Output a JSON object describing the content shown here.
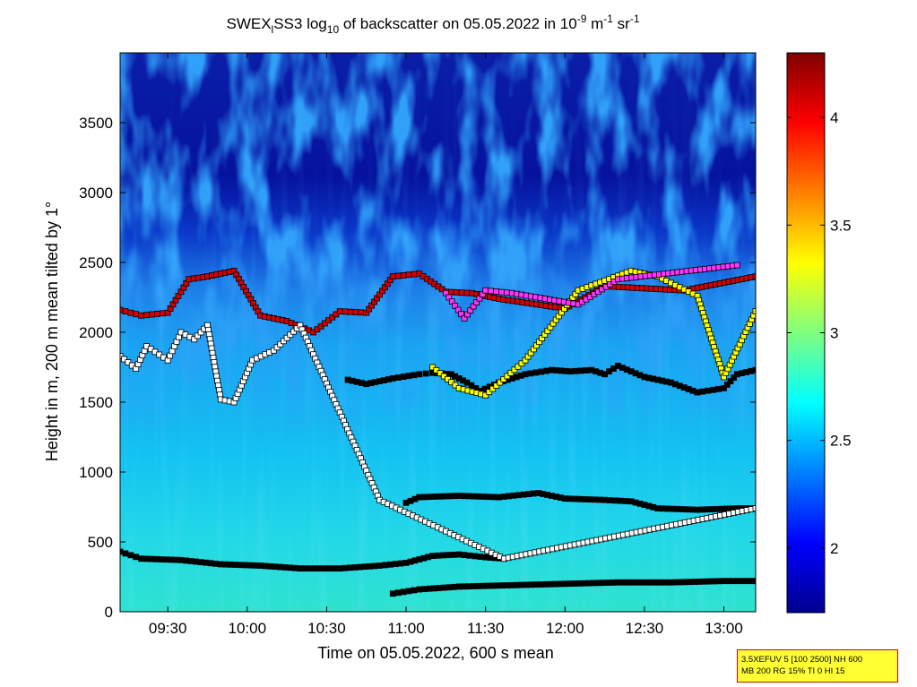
{
  "chart_data": {
    "type": "heatmap",
    "title": {
      "prefix": "SWEX",
      "sub1": "l",
      "mid1": "SS3 log",
      "sub2": "10",
      "mid2": " of backscatter on 05.05.2022 in 10",
      "sup1": "-9",
      "mid3": " m",
      "sup2": "-1",
      "mid4": " sr",
      "sup3": "-1"
    },
    "xlabel": "Time on 05.05.2022, 600 s mean",
    "ylabel": "Height in m, 200 m mean tilted by 1°",
    "xlim": [
      "09:12",
      "13:12"
    ],
    "ylim": [
      0,
      4000
    ],
    "x_ticks": [
      "09:30",
      "10:00",
      "10:30",
      "11:00",
      "11:30",
      "12:00",
      "12:30",
      "13:00"
    ],
    "y_ticks": [
      "0",
      "500",
      "1000",
      "1500",
      "2000",
      "2500",
      "3000",
      "3500"
    ],
    "colorbar": {
      "range": [
        1.7,
        4.3
      ],
      "ticks": [
        "2",
        "2.5",
        "3",
        "3.5",
        "4"
      ],
      "colormap": "jet"
    },
    "layers": [
      {
        "marker": "black",
        "points": [
          [
            "09:12",
            430
          ],
          [
            "09:20",
            380
          ],
          [
            "09:35",
            370
          ],
          [
            "09:50",
            340
          ],
          [
            "10:05",
            330
          ],
          [
            "10:20",
            310
          ],
          [
            "10:35",
            310
          ],
          [
            "10:50",
            330
          ],
          [
            "11:00",
            350
          ],
          [
            "11:10",
            400
          ],
          [
            "11:20",
            410
          ],
          [
            "11:30",
            390
          ],
          [
            "11:37",
            380
          ]
        ]
      },
      {
        "marker": "black",
        "points": [
          [
            "10:55",
            130
          ],
          [
            "11:05",
            160
          ],
          [
            "11:20",
            180
          ],
          [
            "11:40",
            190
          ],
          [
            "12:00",
            200
          ],
          [
            "12:20",
            210
          ],
          [
            "12:40",
            210
          ],
          [
            "13:00",
            220
          ],
          [
            "13:12",
            220
          ]
        ]
      },
      {
        "marker": "black",
        "points": [
          [
            "11:00",
            780
          ],
          [
            "11:05",
            820
          ],
          [
            "11:20",
            830
          ],
          [
            "11:35",
            820
          ],
          [
            "11:50",
            850
          ],
          [
            "12:00",
            810
          ],
          [
            "12:15",
            800
          ],
          [
            "12:25",
            790
          ],
          [
            "12:35",
            740
          ],
          [
            "12:50",
            730
          ],
          [
            "13:05",
            740
          ],
          [
            "13:12",
            740
          ]
        ]
      },
      {
        "marker": "black",
        "points": [
          [
            "10:38",
            1660
          ],
          [
            "10:45",
            1630
          ],
          [
            "10:55",
            1670
          ],
          [
            "11:05",
            1700
          ],
          [
            "11:10",
            1710
          ],
          [
            "11:17",
            1700
          ],
          [
            "11:23",
            1640
          ],
          [
            "11:28",
            1580
          ],
          [
            "11:35",
            1640
          ],
          [
            "11:45",
            1700
          ],
          [
            "11:55",
            1730
          ],
          [
            "12:02",
            1720
          ],
          [
            "12:10",
            1730
          ],
          [
            "12:15",
            1700
          ],
          [
            "12:20",
            1760
          ],
          [
            "12:30",
            1680
          ],
          [
            "12:40",
            1640
          ],
          [
            "12:50",
            1570
          ],
          [
            "13:00",
            1600
          ],
          [
            "13:05",
            1700
          ],
          [
            "13:12",
            1730
          ]
        ]
      },
      {
        "marker": "red",
        "points": [
          [
            "09:12",
            2160
          ],
          [
            "09:20",
            2120
          ],
          [
            "09:30",
            2140
          ],
          [
            "09:38",
            2380
          ],
          [
            "09:45",
            2400
          ],
          [
            "09:55",
            2440
          ],
          [
            "10:05",
            2120
          ],
          [
            "10:15",
            2080
          ],
          [
            "10:25",
            2000
          ],
          [
            "10:35",
            2150
          ],
          [
            "10:45",
            2140
          ],
          [
            "10:55",
            2400
          ],
          [
            "11:05",
            2420
          ],
          [
            "11:15",
            2290
          ],
          [
            "11:25",
            2280
          ],
          [
            "11:35",
            2240
          ],
          [
            "12:00",
            2170
          ],
          [
            "12:15",
            2330
          ],
          [
            "12:45",
            2300
          ],
          [
            "13:12",
            2400
          ]
        ]
      },
      {
        "marker": "yellow",
        "points": [
          [
            "11:10",
            1750
          ],
          [
            "11:20",
            1600
          ],
          [
            "11:30",
            1550
          ],
          [
            "11:45",
            1800
          ],
          [
            "12:05",
            2300
          ],
          [
            "12:25",
            2440
          ],
          [
            "12:35",
            2400
          ],
          [
            "12:50",
            2260
          ],
          [
            "13:00",
            1680
          ],
          [
            "13:12",
            2150
          ]
        ]
      },
      {
        "marker": "magenta",
        "points": [
          [
            "11:15",
            2280
          ],
          [
            "11:22",
            2100
          ],
          [
            "11:30",
            2300
          ],
          [
            "11:40",
            2280
          ],
          [
            "12:05",
            2200
          ],
          [
            "12:20",
            2380
          ],
          [
            "13:05",
            2480
          ]
        ]
      },
      {
        "marker": "white",
        "points": [
          [
            "09:12",
            1830
          ],
          [
            "09:18",
            1740
          ],
          [
            "09:22",
            1900
          ],
          [
            "09:30",
            1800
          ],
          [
            "09:35",
            2000
          ],
          [
            "09:40",
            1950
          ],
          [
            "09:45",
            2050
          ],
          [
            "09:50",
            1520
          ],
          [
            "09:55",
            1500
          ],
          [
            "10:02",
            1800
          ],
          [
            "10:10",
            1870
          ],
          [
            "10:20",
            2050
          ],
          [
            "10:50",
            800
          ],
          [
            "11:37",
            380
          ],
          [
            "13:12",
            740
          ]
        ]
      }
    ]
  },
  "info_box": {
    "line1": "3.5XEFUV 5 [100 2500] NH 600",
    "line2": "MB 200 RG 15% TI 0 HI 15"
  }
}
